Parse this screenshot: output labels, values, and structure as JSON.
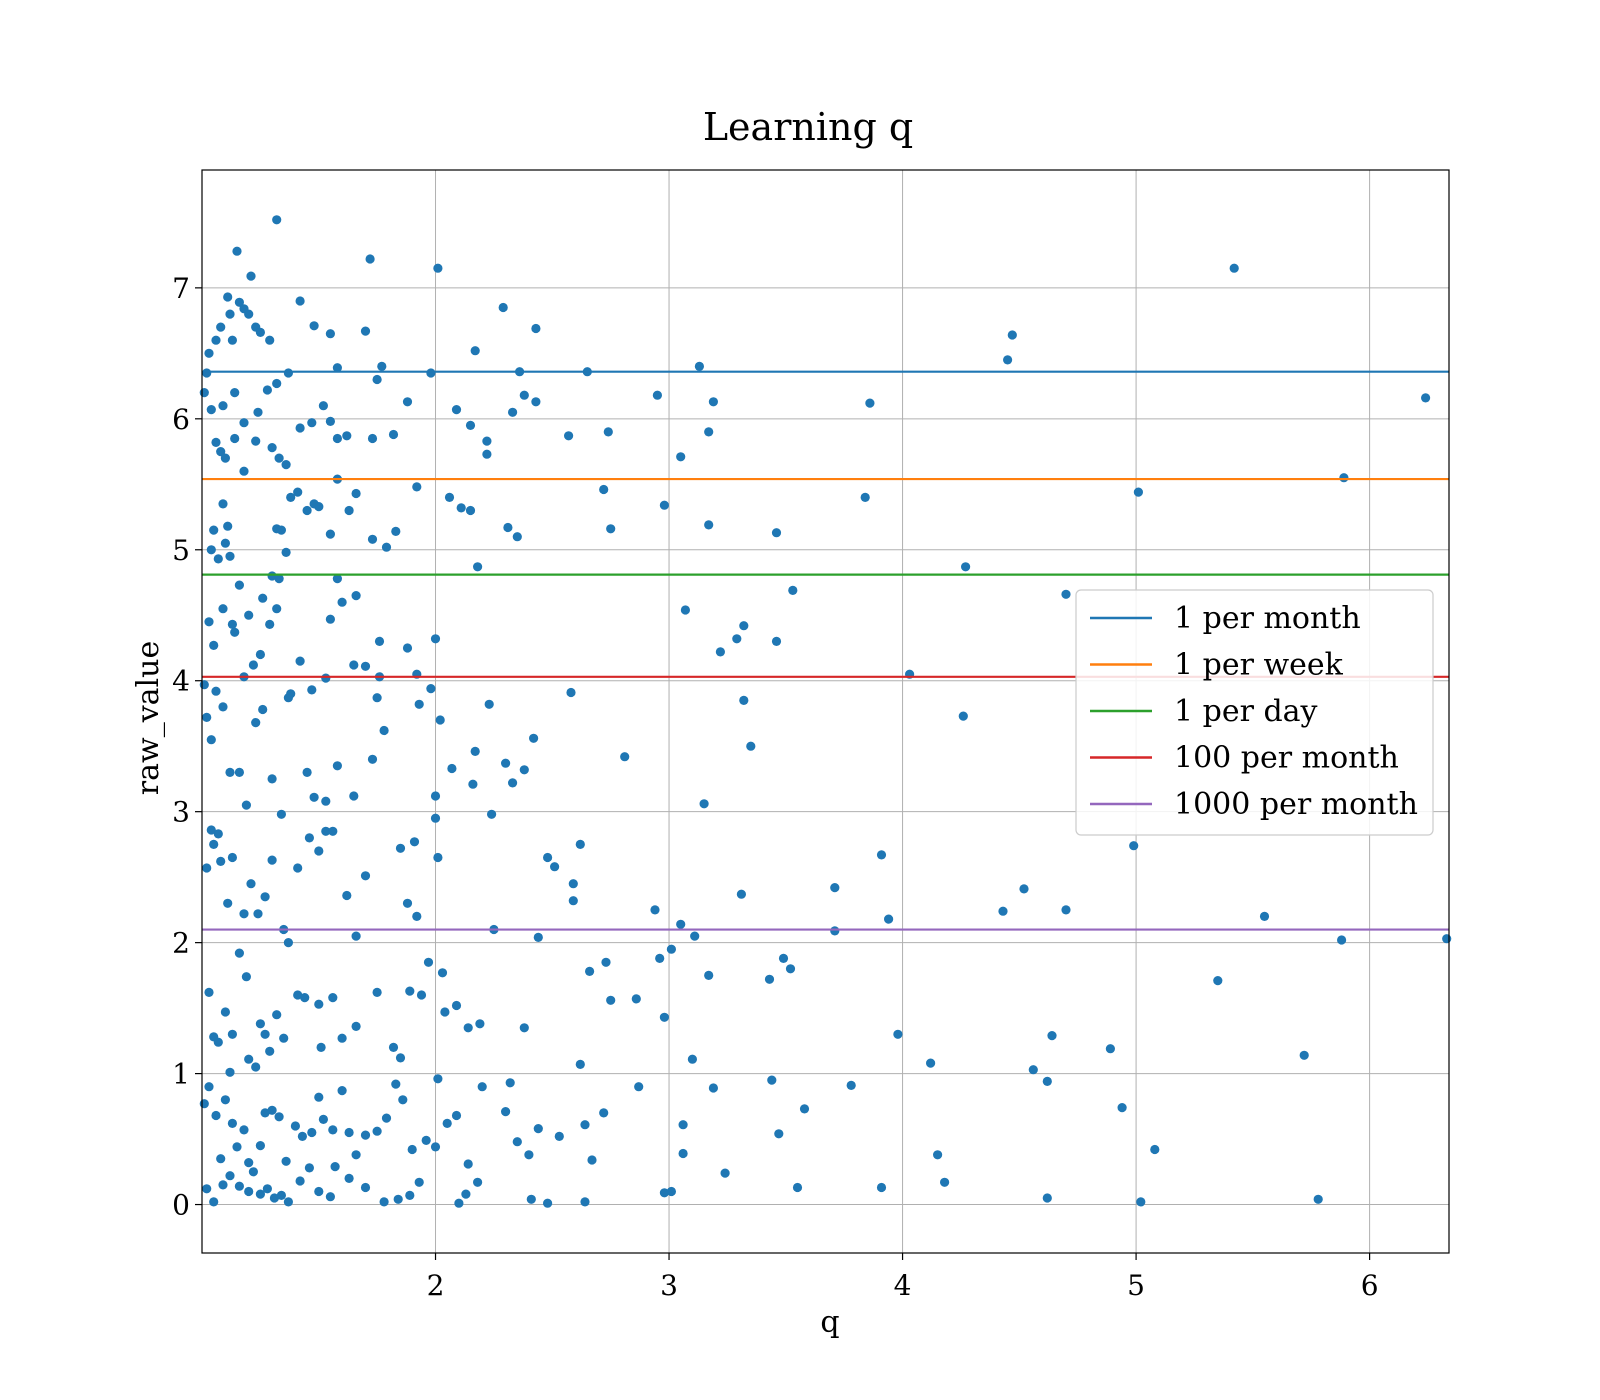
{
  "chart_data": {
    "type": "scatter",
    "title": "Learning q",
    "xlabel": "q",
    "ylabel": "raw_value",
    "xlim": [
      1.0,
      6.34
    ],
    "ylim": [
      -0.37,
      7.9
    ],
    "xticks": [
      2,
      3,
      4,
      5,
      6
    ],
    "yticks": [
      0,
      1,
      2,
      3,
      4,
      5,
      6,
      7
    ],
    "grid": true,
    "legend_position": "center-right",
    "point_color": "#1f77b4",
    "hlines": [
      {
        "name": "1 per month",
        "y": 6.36,
        "color": "#1f77b4"
      },
      {
        "name": "1 per week",
        "y": 5.54,
        "color": "#ff7f0e"
      },
      {
        "name": "1 per day",
        "y": 4.81,
        "color": "#2ca02c"
      },
      {
        "name": "100 per month",
        "y": 4.03,
        "color": "#d62728"
      },
      {
        "name": "1000 per month",
        "y": 2.1,
        "color": "#9467bd"
      }
    ],
    "points": [
      [
        1.01,
        6.2
      ],
      [
        1.02,
        6.35
      ],
      [
        1.03,
        6.5
      ],
      [
        1.04,
        6.07
      ],
      [
        1.06,
        6.6
      ],
      [
        1.08,
        6.7
      ],
      [
        1.09,
        6.1
      ],
      [
        1.11,
        6.93
      ],
      [
        1.12,
        6.8
      ],
      [
        1.13,
        6.6
      ],
      [
        1.14,
        6.2
      ],
      [
        1.16,
        6.89
      ],
      [
        1.18,
        6.84
      ],
      [
        1.2,
        6.8
      ],
      [
        1.23,
        6.7
      ],
      [
        1.25,
        6.66
      ],
      [
        1.29,
        6.6
      ],
      [
        1.15,
        7.28
      ],
      [
        1.21,
        7.09
      ],
      [
        1.32,
        7.52
      ],
      [
        1.72,
        7.22
      ],
      [
        2.01,
        7.15
      ],
      [
        5.42,
        7.15
      ],
      [
        1.42,
        6.9
      ],
      [
        1.48,
        6.71
      ],
      [
        1.55,
        6.65
      ],
      [
        1.7,
        6.67
      ],
      [
        2.17,
        6.52
      ],
      [
        2.29,
        6.85
      ],
      [
        2.43,
        6.69
      ],
      [
        4.45,
        6.45
      ],
      [
        4.47,
        6.64
      ],
      [
        6.24,
        6.16
      ],
      [
        3.13,
        6.4
      ],
      [
        2.95,
        6.18
      ],
      [
        3.19,
        6.13
      ],
      [
        3.86,
        6.12
      ],
      [
        2.65,
        6.36
      ],
      [
        1.98,
        6.35
      ],
      [
        1.77,
        6.4
      ],
      [
        1.75,
        6.3
      ],
      [
        1.58,
        6.39
      ],
      [
        1.37,
        6.35
      ],
      [
        1.32,
        6.27
      ],
      [
        1.28,
        6.22
      ],
      [
        1.24,
        6.05
      ],
      [
        1.18,
        5.97
      ],
      [
        1.14,
        5.85
      ],
      [
        1.08,
        5.75
      ],
      [
        1.06,
        5.82
      ],
      [
        1.1,
        5.7
      ],
      [
        1.18,
        5.6
      ],
      [
        1.23,
        5.83
      ],
      [
        1.3,
        5.78
      ],
      [
        1.33,
        5.7
      ],
      [
        1.36,
        5.65
      ],
      [
        1.42,
        5.93
      ],
      [
        1.47,
        5.97
      ],
      [
        1.52,
        6.1
      ],
      [
        1.55,
        5.98
      ],
      [
        1.58,
        5.85
      ],
      [
        1.62,
        5.87
      ],
      [
        1.73,
        5.85
      ],
      [
        1.82,
        5.88
      ],
      [
        1.88,
        6.13
      ],
      [
        2.09,
        6.07
      ],
      [
        2.15,
        5.95
      ],
      [
        2.22,
        5.83
      ],
      [
        2.22,
        5.73
      ],
      [
        2.33,
        6.05
      ],
      [
        2.36,
        6.36
      ],
      [
        2.38,
        6.18
      ],
      [
        2.43,
        6.13
      ],
      [
        2.57,
        5.87
      ],
      [
        2.74,
        5.9
      ],
      [
        3.05,
        5.71
      ],
      [
        3.17,
        5.9
      ],
      [
        1.05,
        5.15
      ],
      [
        1.09,
        5.35
      ],
      [
        1.1,
        5.05
      ],
      [
        1.11,
        5.18
      ],
      [
        1.12,
        4.95
      ],
      [
        1.07,
        4.93
      ],
      [
        1.04,
        5.0
      ],
      [
        1.16,
        4.73
      ],
      [
        1.2,
        4.5
      ],
      [
        1.26,
        4.63
      ],
      [
        1.3,
        4.8
      ],
      [
        1.32,
        5.16
      ],
      [
        1.34,
        5.15
      ],
      [
        1.38,
        5.4
      ],
      [
        1.41,
        5.44
      ],
      [
        1.45,
        5.3
      ],
      [
        1.48,
        5.35
      ],
      [
        1.5,
        5.33
      ],
      [
        1.55,
        5.12
      ],
      [
        1.58,
        5.54
      ],
      [
        1.63,
        5.3
      ],
      [
        1.66,
        5.43
      ],
      [
        1.73,
        5.08
      ],
      [
        1.79,
        5.02
      ],
      [
        1.83,
        5.14
      ],
      [
        1.92,
        5.48
      ],
      [
        2.06,
        5.4
      ],
      [
        2.11,
        5.32
      ],
      [
        2.15,
        5.3
      ],
      [
        2.18,
        4.87
      ],
      [
        2.31,
        5.17
      ],
      [
        2.35,
        5.1
      ],
      [
        2.72,
        5.46
      ],
      [
        2.75,
        5.16
      ],
      [
        2.98,
        5.34
      ],
      [
        3.17,
        5.19
      ],
      [
        3.46,
        5.13
      ],
      [
        3.84,
        5.4
      ],
      [
        4.27,
        4.87
      ],
      [
        5.01,
        5.44
      ],
      [
        5.89,
        5.55
      ],
      [
        1.33,
        4.78
      ],
      [
        1.58,
        4.78
      ],
      [
        1.66,
        4.65
      ],
      [
        1.36,
        4.98
      ],
      [
        1.03,
        4.45
      ],
      [
        1.05,
        4.27
      ],
      [
        1.09,
        4.55
      ],
      [
        1.13,
        4.43
      ],
      [
        1.14,
        4.37
      ],
      [
        1.18,
        4.03
      ],
      [
        1.22,
        4.12
      ],
      [
        1.25,
        4.2
      ],
      [
        1.29,
        4.43
      ],
      [
        1.32,
        4.55
      ],
      [
        1.37,
        3.87
      ],
      [
        1.42,
        4.15
      ],
      [
        1.47,
        3.93
      ],
      [
        1.53,
        4.02
      ],
      [
        1.55,
        4.47
      ],
      [
        1.6,
        4.6
      ],
      [
        1.65,
        4.12
      ],
      [
        1.7,
        4.11
      ],
      [
        1.76,
        4.3
      ],
      [
        1.76,
        4.03
      ],
      [
        1.88,
        4.25
      ],
      [
        1.92,
        4.05
      ],
      [
        2.0,
        4.32
      ],
      [
        3.07,
        4.54
      ],
      [
        3.22,
        4.22
      ],
      [
        3.29,
        4.32
      ],
      [
        3.32,
        4.42
      ],
      [
        3.46,
        4.3
      ],
      [
        3.53,
        4.69
      ],
      [
        4.03,
        4.05
      ],
      [
        4.7,
        4.66
      ],
      [
        1.01,
        3.97
      ],
      [
        1.02,
        3.72
      ],
      [
        1.04,
        3.55
      ],
      [
        1.06,
        3.92
      ],
      [
        1.09,
        3.8
      ],
      [
        1.12,
        3.3
      ],
      [
        1.16,
        3.3
      ],
      [
        1.19,
        3.05
      ],
      [
        1.23,
        3.68
      ],
      [
        1.26,
        3.78
      ],
      [
        1.3,
        3.25
      ],
      [
        1.34,
        2.98
      ],
      [
        1.38,
        3.9
      ],
      [
        1.45,
        3.3
      ],
      [
        1.48,
        3.11
      ],
      [
        1.53,
        3.08
      ],
      [
        1.58,
        3.35
      ],
      [
        1.65,
        3.12
      ],
      [
        1.73,
        3.4
      ],
      [
        1.75,
        3.87
      ],
      [
        1.78,
        3.62
      ],
      [
        1.93,
        3.82
      ],
      [
        1.98,
        3.94
      ],
      [
        2.0,
        3.12
      ],
      [
        2.02,
        3.7
      ],
      [
        2.07,
        3.33
      ],
      [
        2.16,
        3.21
      ],
      [
        2.17,
        3.46
      ],
      [
        2.23,
        3.82
      ],
      [
        2.3,
        3.37
      ],
      [
        2.33,
        3.22
      ],
      [
        2.38,
        3.32
      ],
      [
        2.42,
        3.56
      ],
      [
        2.58,
        3.91
      ],
      [
        2.81,
        3.42
      ],
      [
        3.15,
        3.06
      ],
      [
        3.32,
        3.85
      ],
      [
        3.35,
        3.5
      ],
      [
        4.26,
        3.73
      ],
      [
        1.02,
        2.57
      ],
      [
        1.04,
        2.86
      ],
      [
        1.05,
        2.75
      ],
      [
        1.07,
        2.83
      ],
      [
        1.08,
        2.62
      ],
      [
        1.11,
        2.3
      ],
      [
        1.13,
        2.65
      ],
      [
        1.18,
        2.22
      ],
      [
        1.21,
        2.45
      ],
      [
        1.24,
        2.22
      ],
      [
        1.27,
        2.35
      ],
      [
        1.3,
        2.63
      ],
      [
        1.35,
        2.1
      ],
      [
        1.37,
        2.0
      ],
      [
        1.41,
        2.57
      ],
      [
        1.46,
        2.8
      ],
      [
        1.5,
        2.7
      ],
      [
        1.53,
        2.85
      ],
      [
        1.56,
        2.85
      ],
      [
        1.62,
        2.36
      ],
      [
        1.66,
        2.05
      ],
      [
        1.7,
        2.51
      ],
      [
        1.85,
        2.72
      ],
      [
        1.88,
        2.3
      ],
      [
        1.91,
        2.77
      ],
      [
        1.92,
        2.2
      ],
      [
        1.97,
        1.85
      ],
      [
        2.0,
        2.95
      ],
      [
        2.01,
        2.65
      ],
      [
        2.03,
        1.77
      ],
      [
        2.24,
        2.98
      ],
      [
        2.25,
        2.1
      ],
      [
        2.44,
        2.04
      ],
      [
        2.48,
        2.65
      ],
      [
        2.51,
        2.58
      ],
      [
        2.59,
        2.45
      ],
      [
        2.59,
        2.32
      ],
      [
        2.62,
        2.75
      ],
      [
        2.94,
        2.25
      ],
      [
        2.96,
        1.88
      ],
      [
        3.01,
        1.95
      ],
      [
        3.05,
        2.14
      ],
      [
        3.11,
        2.05
      ],
      [
        3.31,
        2.37
      ],
      [
        3.71,
        2.42
      ],
      [
        3.71,
        2.09
      ],
      [
        3.91,
        2.67
      ],
      [
        3.94,
        2.18
      ],
      [
        4.43,
        2.24
      ],
      [
        4.52,
        2.41
      ],
      [
        4.7,
        2.25
      ],
      [
        4.99,
        2.74
      ],
      [
        5.55,
        2.2
      ],
      [
        5.88,
        2.02
      ],
      [
        6.33,
        2.03
      ],
      [
        1.03,
        1.62
      ],
      [
        1.05,
        1.28
      ],
      [
        1.07,
        1.24
      ],
      [
        1.1,
        1.47
      ],
      [
        1.12,
        1.01
      ],
      [
        1.13,
        1.3
      ],
      [
        1.16,
        1.92
      ],
      [
        1.19,
        1.74
      ],
      [
        1.2,
        1.11
      ],
      [
        1.23,
        1.05
      ],
      [
        1.25,
        1.38
      ],
      [
        1.27,
        1.3
      ],
      [
        1.29,
        1.17
      ],
      [
        1.32,
        1.45
      ],
      [
        1.35,
        1.27
      ],
      [
        1.41,
        1.6
      ],
      [
        1.44,
        1.58
      ],
      [
        1.5,
        1.53
      ],
      [
        1.51,
        1.2
      ],
      [
        1.56,
        1.58
      ],
      [
        1.6,
        1.27
      ],
      [
        1.66,
        1.36
      ],
      [
        1.75,
        1.62
      ],
      [
        1.82,
        1.2
      ],
      [
        1.85,
        1.12
      ],
      [
        1.89,
        1.63
      ],
      [
        1.94,
        1.6
      ],
      [
        2.01,
        0.96
      ],
      [
        2.04,
        1.47
      ],
      [
        2.09,
        1.52
      ],
      [
        2.14,
        1.35
      ],
      [
        2.19,
        1.38
      ],
      [
        2.38,
        1.35
      ],
      [
        2.62,
        1.07
      ],
      [
        2.66,
        1.78
      ],
      [
        2.73,
        1.85
      ],
      [
        2.75,
        1.56
      ],
      [
        2.86,
        1.57
      ],
      [
        2.98,
        1.43
      ],
      [
        3.1,
        1.11
      ],
      [
        3.17,
        1.75
      ],
      [
        3.43,
        1.72
      ],
      [
        3.49,
        1.88
      ],
      [
        3.52,
        1.8
      ],
      [
        3.98,
        1.3
      ],
      [
        4.12,
        1.08
      ],
      [
        4.56,
        1.03
      ],
      [
        4.64,
        1.29
      ],
      [
        4.89,
        1.19
      ],
      [
        5.35,
        1.71
      ],
      [
        5.72,
        1.14
      ],
      [
        1.01,
        0.77
      ],
      [
        1.03,
        0.9
      ],
      [
        1.06,
        0.68
      ],
      [
        1.08,
        0.35
      ],
      [
        1.1,
        0.8
      ],
      [
        1.13,
        0.62
      ],
      [
        1.15,
        0.44
      ],
      [
        1.18,
        0.57
      ],
      [
        1.2,
        0.32
      ],
      [
        1.22,
        0.25
      ],
      [
        1.25,
        0.45
      ],
      [
        1.27,
        0.7
      ],
      [
        1.3,
        0.72
      ],
      [
        1.33,
        0.67
      ],
      [
        1.36,
        0.33
      ],
      [
        1.4,
        0.6
      ],
      [
        1.43,
        0.52
      ],
      [
        1.47,
        0.55
      ],
      [
        1.5,
        0.82
      ],
      [
        1.52,
        0.65
      ],
      [
        1.56,
        0.57
      ],
      [
        1.6,
        0.87
      ],
      [
        1.63,
        0.55
      ],
      [
        1.66,
        0.38
      ],
      [
        1.7,
        0.53
      ],
      [
        1.75,
        0.56
      ],
      [
        1.79,
        0.66
      ],
      [
        1.83,
        0.92
      ],
      [
        1.86,
        0.8
      ],
      [
        1.9,
        0.42
      ],
      [
        1.96,
        0.49
      ],
      [
        2.0,
        0.44
      ],
      [
        2.05,
        0.62
      ],
      [
        2.09,
        0.68
      ],
      [
        2.14,
        0.31
      ],
      [
        2.2,
        0.9
      ],
      [
        2.3,
        0.71
      ],
      [
        2.32,
        0.93
      ],
      [
        2.35,
        0.48
      ],
      [
        2.4,
        0.38
      ],
      [
        2.44,
        0.58
      ],
      [
        2.53,
        0.52
      ],
      [
        2.64,
        0.61
      ],
      [
        2.67,
        0.34
      ],
      [
        2.72,
        0.7
      ],
      [
        2.87,
        0.9
      ],
      [
        3.06,
        0.39
      ],
      [
        3.06,
        0.61
      ],
      [
        3.19,
        0.89
      ],
      [
        3.44,
        0.95
      ],
      [
        3.47,
        0.54
      ],
      [
        3.58,
        0.73
      ],
      [
        3.78,
        0.91
      ],
      [
        4.15,
        0.38
      ],
      [
        4.62,
        0.94
      ],
      [
        4.94,
        0.74
      ],
      [
        5.08,
        0.42
      ],
      [
        1.02,
        0.12
      ],
      [
        1.05,
        0.02
      ],
      [
        1.09,
        0.15
      ],
      [
        1.12,
        0.22
      ],
      [
        1.16,
        0.14
      ],
      [
        1.2,
        0.1
      ],
      [
        1.25,
        0.08
      ],
      [
        1.28,
        0.12
      ],
      [
        1.31,
        0.05
      ],
      [
        1.34,
        0.07
      ],
      [
        1.37,
        0.02
      ],
      [
        1.42,
        0.18
      ],
      [
        1.46,
        0.28
      ],
      [
        1.5,
        0.1
      ],
      [
        1.55,
        0.06
      ],
      [
        1.57,
        0.29
      ],
      [
        1.63,
        0.2
      ],
      [
        1.7,
        0.13
      ],
      [
        1.78,
        0.02
      ],
      [
        1.84,
        0.04
      ],
      [
        1.89,
        0.07
      ],
      [
        1.93,
        0.17
      ],
      [
        2.1,
        0.01
      ],
      [
        2.13,
        0.08
      ],
      [
        2.18,
        0.17
      ],
      [
        2.41,
        0.04
      ],
      [
        2.48,
        0.01
      ],
      [
        2.64,
        0.02
      ],
      [
        2.98,
        0.09
      ],
      [
        3.01,
        0.1
      ],
      [
        3.24,
        0.24
      ],
      [
        3.55,
        0.13
      ],
      [
        3.91,
        0.13
      ],
      [
        4.18,
        0.17
      ],
      [
        4.62,
        0.05
      ],
      [
        5.02,
        0.02
      ],
      [
        5.78,
        0.04
      ]
    ]
  }
}
